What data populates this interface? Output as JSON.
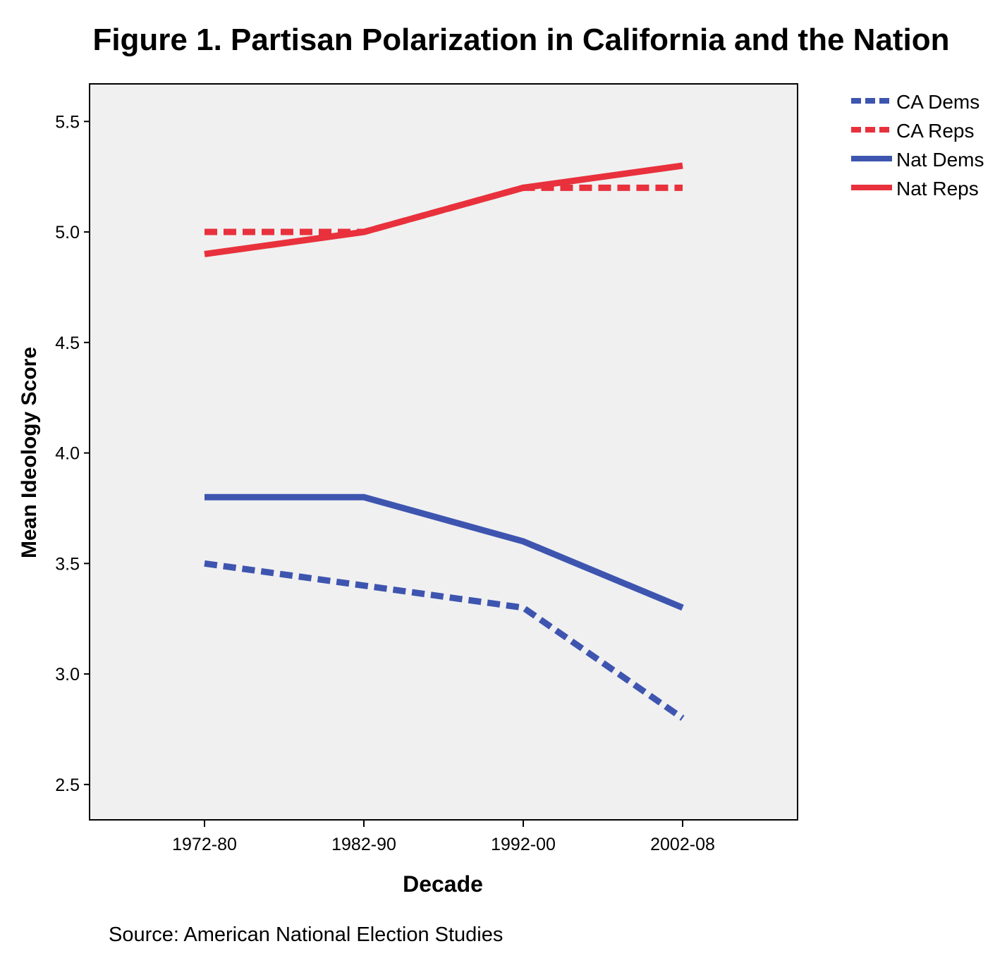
{
  "chart_data": {
    "type": "line",
    "title": "Figure 1. Partisan Polarization in California and the Nation",
    "xlabel": "Decade",
    "ylabel": "Mean Ideology Score",
    "categories": [
      "1972-80",
      "1982-90",
      "1992-00",
      "2002-08"
    ],
    "ylim": [
      2.34,
      5.67
    ],
    "yticks": [
      2.5,
      3.0,
      3.5,
      4.0,
      4.5,
      5.0,
      5.5
    ],
    "ytick_labels": [
      "2.5",
      "3.0",
      "3.5",
      "4.0",
      "4.5",
      "5.0",
      "5.5"
    ],
    "grid": false,
    "legend_position": "outside-top-right",
    "plot_background": "#f0f0f0",
    "series": [
      {
        "name": "CA Dems",
        "values": [
          3.5,
          3.4,
          3.3,
          2.8
        ],
        "color": "#3e55b0",
        "style": "dashed"
      },
      {
        "name": "CA Reps",
        "values": [
          5.0,
          5.0,
          5.2,
          5.2
        ],
        "color": "#e8313c",
        "style": "dashed"
      },
      {
        "name": "Nat Dems",
        "values": [
          3.8,
          3.8,
          3.6,
          3.3
        ],
        "color": "#3e55b0",
        "style": "solid"
      },
      {
        "name": "Nat Reps",
        "values": [
          4.9,
          5.0,
          5.2,
          5.3
        ],
        "color": "#e8313c",
        "style": "solid"
      }
    ]
  },
  "source_note": "Source: American National Election Studies"
}
